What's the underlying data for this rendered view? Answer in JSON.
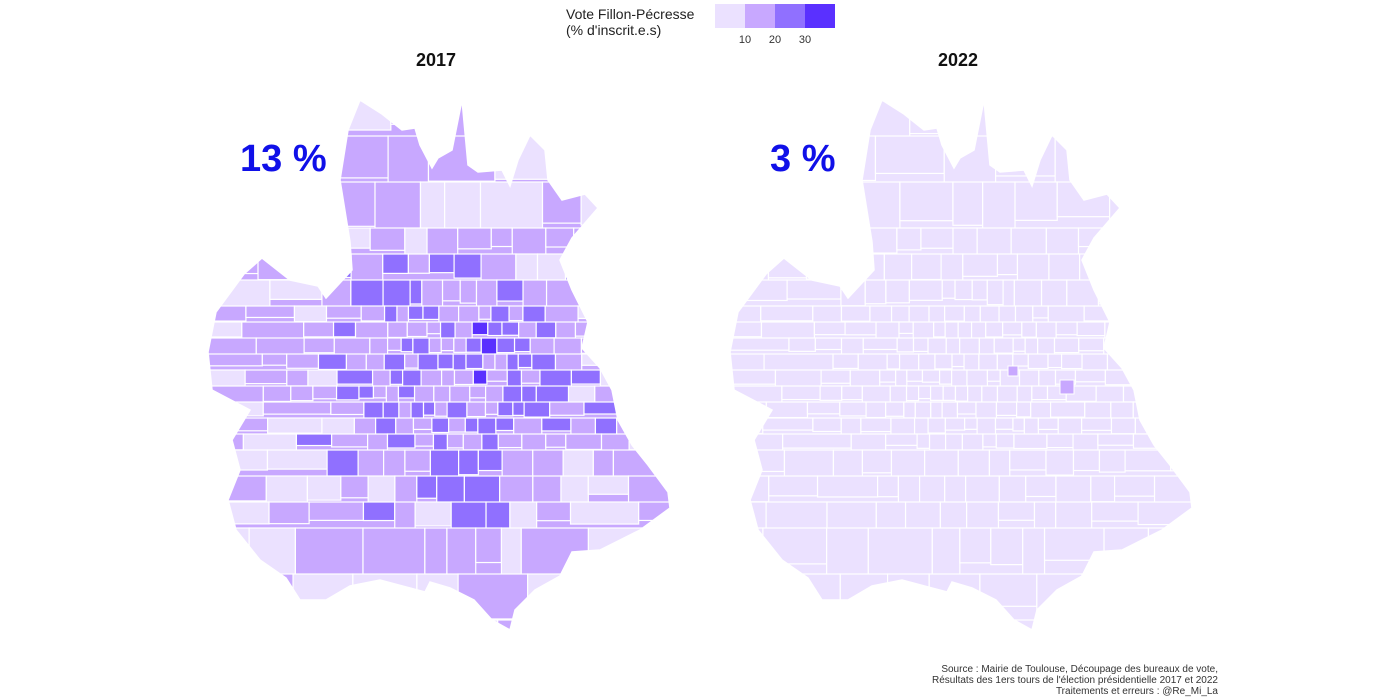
{
  "legend": {
    "title_line1": "Vote Fillon-Pécresse",
    "title_line2": "(% d'inscrit.e.s)",
    "colors": [
      "#ebe1ff",
      "#c8a8ff",
      "#9070ff",
      "#5a30ff"
    ],
    "ticks": [
      "10",
      "20",
      "30"
    ]
  },
  "panels": [
    {
      "year": "2017",
      "stat": "13 %"
    },
    {
      "year": "2022",
      "stat": "3 %"
    }
  ],
  "source": {
    "line1": "Source : Mairie de Toulouse, Découpage des bureaux de vote,",
    "line2": "Résultats des 1ers tours de l'élection présidentielle 2017 et 2022",
    "line3": "Traitements et erreurs : @Re_Mi_La"
  }
}
